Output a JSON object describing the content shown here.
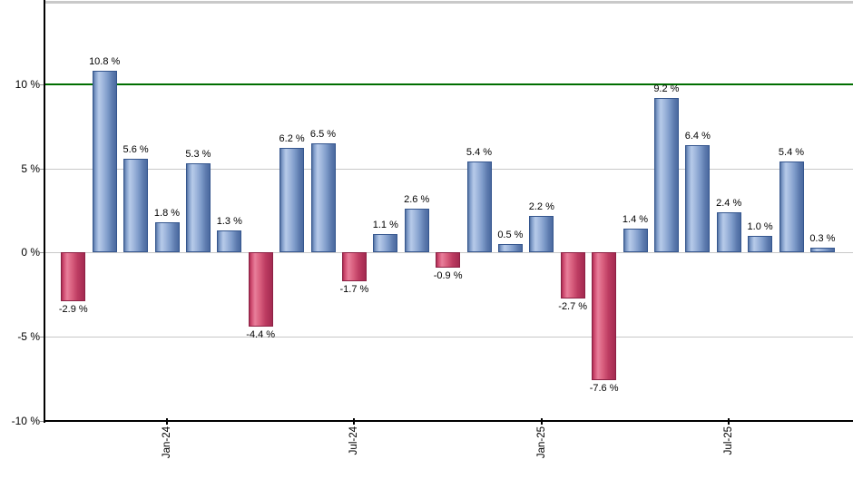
{
  "chart_data": {
    "type": "bar",
    "title": "",
    "xlabel": "",
    "ylabel": "",
    "unit": "%",
    "grid": true,
    "ylim": [
      -10,
      14.9
    ],
    "values": [
      -2.9,
      10.8,
      5.6,
      1.8,
      5.3,
      1.3,
      -4.4,
      6.2,
      6.5,
      -1.7,
      1.1,
      2.6,
      -0.9,
      5.4,
      0.5,
      2.2,
      -2.7,
      -7.6,
      1.4,
      9.2,
      6.4,
      2.4,
      1.0,
      5.4,
      0.3
    ],
    "bar_labels": [
      "-2.9 %",
      "10.8 %",
      "5.6 %",
      "1.8 %",
      "5.3 %",
      "1.3 %",
      "-4.4 %",
      "6.2 %",
      "6.5 %",
      "-1.7 %",
      "1.1 %",
      "2.6 %",
      "-0.9 %",
      "5.4 %",
      "0.5 %",
      "2.2 %",
      "-2.7 %",
      "-7.6 %",
      "1.4 %",
      "9.2 %",
      "6.4 %",
      "2.4 %",
      "1.0 %",
      "5.4 %",
      "0.3 %"
    ],
    "y_ticks": [
      {
        "value": 10,
        "label": "10 %"
      },
      {
        "value": 5,
        "label": "5 %"
      },
      {
        "value": 0,
        "label": "0 %"
      },
      {
        "value": -5,
        "label": "-5 %"
      },
      {
        "value": -10,
        "label": "-10 %"
      }
    ],
    "x_ticks": [
      {
        "bar_index": 3,
        "label": "Jan-24"
      },
      {
        "bar_index": 9,
        "label": "Jul-24"
      },
      {
        "bar_index": 15,
        "label": "Jan-25"
      },
      {
        "bar_index": 21,
        "label": "Jul-25"
      }
    ],
    "reference_line": {
      "value": 10,
      "color": "#006e00"
    },
    "colors": {
      "positive": "#7f9cca",
      "positive_border": "#35568e",
      "negative": "#d9607f",
      "negative_border": "#8c2144",
      "grid": "#c8c8c8",
      "axis": "#000000",
      "top_border": "#c9c9c9",
      "label_text": "#000000",
      "background": "#ffffff"
    }
  }
}
